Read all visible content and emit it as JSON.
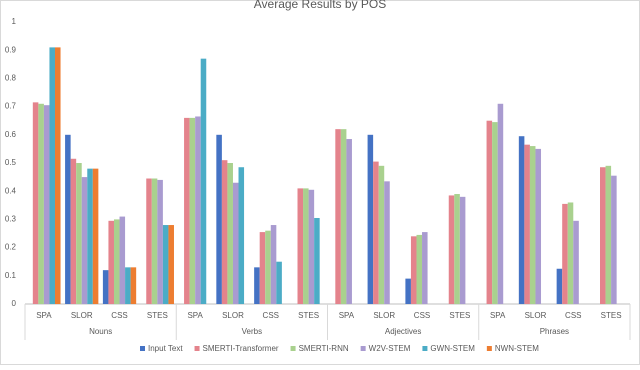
{
  "chart_data": {
    "type": "bar",
    "title": "Average Results by POS",
    "group_labels": [
      "Nouns",
      "Verbs",
      "Adjectives",
      "Phrases"
    ],
    "categories": [
      "SPA",
      "SLOR",
      "CSS",
      "STES",
      "SPA",
      "SLOR",
      "CSS",
      "STES",
      "SPA",
      "SLOR",
      "CSS",
      "STES",
      "SPA",
      "SLOR",
      "CSS",
      "STES"
    ],
    "series": [
      {
        "name": "Input Text",
        "color": "#4472c4",
        "values": [
          null,
          0.6,
          0.12,
          null,
          null,
          0.6,
          0.13,
          null,
          null,
          0.6,
          0.09,
          null,
          null,
          0.595,
          0.125,
          null
        ]
      },
      {
        "name": "SMERTI-Transformer",
        "color": "#e4838c",
        "values": [
          0.715,
          0.515,
          0.295,
          0.445,
          0.66,
          0.51,
          0.255,
          0.41,
          0.62,
          0.505,
          0.24,
          0.385,
          0.65,
          0.565,
          0.355,
          0.485
        ]
      },
      {
        "name": "SMERTI-RNN",
        "color": "#a9d18e",
        "values": [
          0.71,
          0.5,
          0.3,
          0.445,
          0.66,
          0.5,
          0.26,
          0.41,
          0.62,
          0.49,
          0.245,
          0.39,
          0.645,
          0.56,
          0.36,
          0.49
        ]
      },
      {
        "name": "W2V-STEM",
        "color": "#a99bd0",
        "values": [
          0.705,
          0.45,
          0.31,
          0.44,
          0.665,
          0.43,
          0.28,
          0.405,
          0.585,
          0.435,
          0.255,
          0.38,
          0.71,
          0.55,
          0.295,
          0.455
        ]
      },
      {
        "name": "GWN-STEM",
        "color": "#4bacc6",
        "values": [
          0.91,
          0.48,
          0.13,
          0.28,
          0.87,
          0.485,
          0.15,
          0.305,
          null,
          null,
          null,
          null,
          null,
          null,
          null,
          null
        ]
      },
      {
        "name": "NWN-STEM",
        "color": "#ed7d31",
        "values": [
          0.91,
          0.48,
          0.13,
          0.28,
          null,
          null,
          null,
          null,
          null,
          null,
          null,
          null,
          null,
          null,
          null,
          null
        ]
      }
    ],
    "ylim": [
      0,
      1
    ],
    "yticks": [
      0,
      0.1,
      0.2,
      0.3,
      0.4,
      0.5,
      0.6,
      0.7,
      0.8,
      0.9,
      1
    ],
    "grid": false,
    "legend": "bottom"
  }
}
